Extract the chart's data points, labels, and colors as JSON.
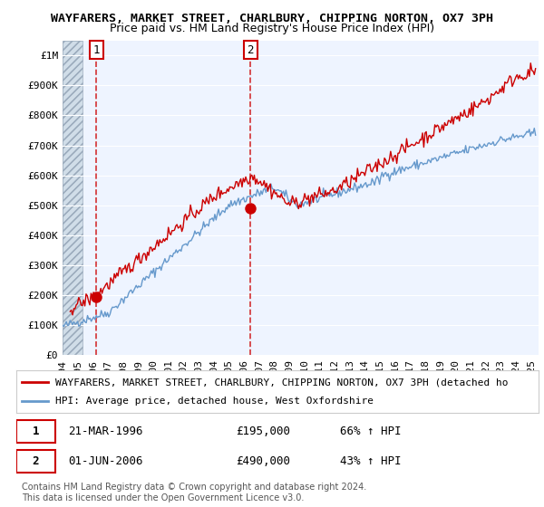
{
  "title": "WAYFARERS, MARKET STREET, CHARLBURY, CHIPPING NORTON, OX7 3PH",
  "subtitle": "Price paid vs. HM Land Registry's House Price Index (HPI)",
  "ylabel_ticks": [
    "£0",
    "£100K",
    "£200K",
    "£300K",
    "£400K",
    "£500K",
    "£600K",
    "£700K",
    "£800K",
    "£900K",
    "£1M"
  ],
  "ytick_vals": [
    0,
    100000,
    200000,
    300000,
    400000,
    500000,
    600000,
    700000,
    800000,
    900000,
    1000000
  ],
  "ylim": [
    0,
    1050000
  ],
  "xlim_start": 1994.0,
  "xlim_end": 2025.5,
  "hatch_end": 1995.3,
  "red_line_color": "#cc0000",
  "blue_line_color": "#6699cc",
  "marker_color": "#cc0000",
  "dashed_line_color": "#cc0000",
  "transaction1_x": 1996.22,
  "transaction1_y": 195000,
  "transaction2_x": 2006.42,
  "transaction2_y": 490000,
  "legend_red_label": "WAYFARERS, MARKET STREET, CHARLBURY, CHIPPING NORTON, OX7 3PH (detached ho",
  "legend_blue_label": "HPI: Average price, detached house, West Oxfordshire",
  "note1_num": "1",
  "note1_date": "21-MAR-1996",
  "note1_price": "£195,000",
  "note1_hpi": "66% ↑ HPI",
  "note2_num": "2",
  "note2_date": "01-JUN-2006",
  "note2_price": "£490,000",
  "note2_hpi": "43% ↑ HPI",
  "copyright": "Contains HM Land Registry data © Crown copyright and database right 2024.\nThis data is licensed under the Open Government Licence v3.0.",
  "background_plot": "#eef4ff",
  "background_hatch": "#dde8f0",
  "grid_color": "#ffffff",
  "title_fontsize": 9.5,
  "subtitle_fontsize": 9,
  "tick_fontsize": 8,
  "legend_fontsize": 8
}
